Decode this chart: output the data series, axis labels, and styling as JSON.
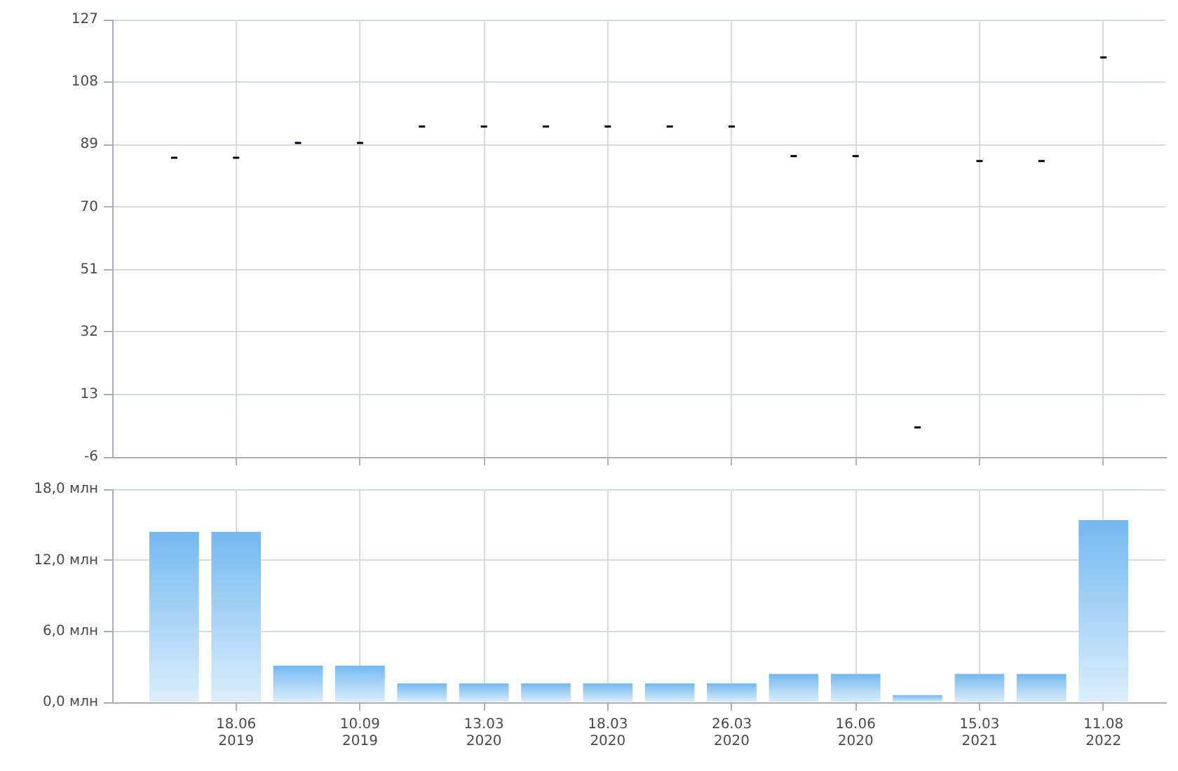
{
  "chart_data": [
    {
      "type": "candlestick",
      "categories": [
        null,
        null,
        null,
        null,
        null,
        null,
        null,
        null,
        null,
        null,
        null,
        null,
        null,
        null,
        null,
        null
      ],
      "ohlc": [
        [
          85,
          85,
          85,
          85
        ],
        [
          85,
          85,
          85,
          85
        ],
        [
          89.5,
          89.5,
          89.5,
          89.5
        ],
        [
          89.5,
          89.5,
          89.5,
          89.5
        ],
        [
          94.5,
          94.5,
          94.5,
          94.5
        ],
        [
          94.5,
          94.5,
          94.5,
          94.5
        ],
        [
          94.5,
          94.5,
          94.5,
          94.5
        ],
        [
          94.5,
          94.5,
          94.5,
          94.5
        ],
        [
          94.5,
          94.5,
          94.5,
          94.5
        ],
        [
          94.5,
          94.5,
          94.5,
          94.5
        ],
        [
          85.5,
          85.5,
          85.5,
          85.5
        ],
        [
          85.5,
          85.5,
          85.5,
          85.5
        ],
        [
          3,
          3,
          3,
          3
        ],
        [
          84,
          84,
          84,
          84
        ],
        [
          84,
          84,
          84,
          84
        ],
        [
          115.5,
          115.5,
          115.5,
          115.5
        ]
      ],
      "color": "#000000",
      "ylim": [
        -6,
        127
      ],
      "yticks": [
        -6,
        13,
        32,
        51,
        70,
        89,
        108,
        127
      ],
      "grid": true,
      "tick_labels": "y"
    },
    {
      "type": "bar",
      "categories": [
        null,
        "18.06\n2019",
        null,
        "10.09\n2019",
        null,
        "13.03\n2020",
        null,
        "18.03\n2020",
        null,
        "26.03\n2020",
        null,
        "16.06\n2020",
        null,
        "15.03\n2021",
        null,
        "11.08\n2022"
      ],
      "values": [
        14.4,
        14.4,
        3.1,
        3.1,
        1.6,
        1.6,
        1.6,
        1.6,
        1.6,
        1.6,
        2.4,
        2.4,
        0.6,
        2.4,
        2.4,
        15.4
      ],
      "color": "#74b9f0",
      "ylim": [
        0,
        18
      ],
      "yticks": [
        {
          "value": 0,
          "label": "0,0 млн"
        },
        {
          "value": 6,
          "label": "6,0 млн"
        },
        {
          "value": 12,
          "label": "12,0 млн"
        },
        {
          "value": 18,
          "label": "18,0 млн"
        }
      ],
      "grid": true
    }
  ]
}
